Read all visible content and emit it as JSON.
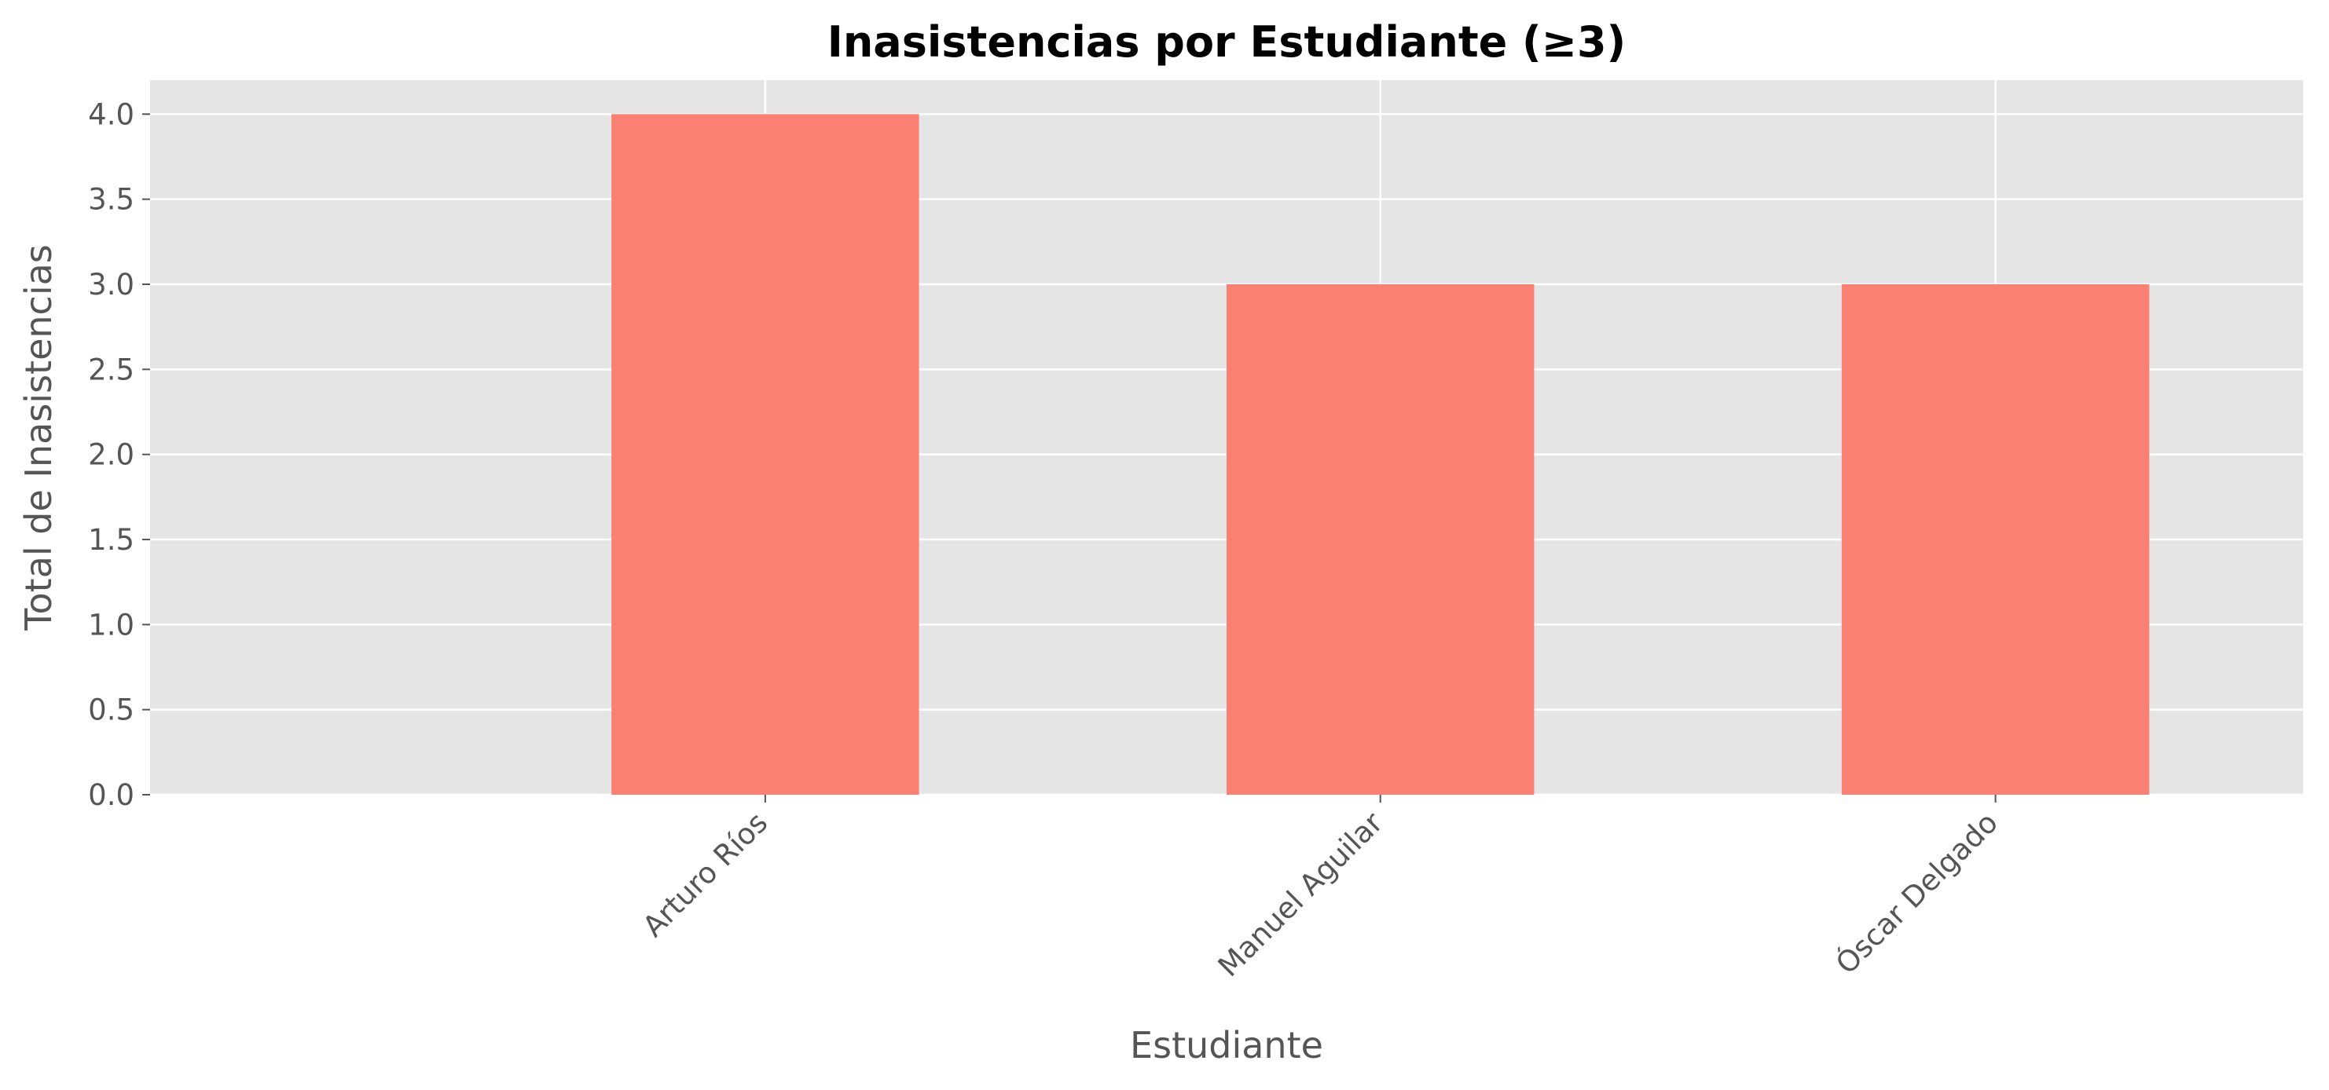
{
  "chart_data": {
    "type": "bar",
    "title": "Inasistencias por Estudiante (≥3)",
    "xlabel": "Estudiante",
    "ylabel": "Total de Inasistencias",
    "categories": [
      "Arturo Ríos",
      "Manuel Aguilar",
      "Óscar Delgado"
    ],
    "values": [
      4,
      3,
      3
    ],
    "ylim": [
      0,
      4.2
    ],
    "yticks": [
      0.0,
      0.5,
      1.0,
      1.5,
      2.0,
      2.5,
      3.0,
      3.5,
      4.0
    ],
    "ytick_labels": [
      "0.0",
      "0.5",
      "1.0",
      "1.5",
      "2.0",
      "2.5",
      "3.0",
      "3.5",
      "4.0"
    ],
    "grid": true,
    "colors": {
      "bar": "#fa8072",
      "plot_background": "#e5e5e5",
      "grid": "#ffffff"
    }
  }
}
